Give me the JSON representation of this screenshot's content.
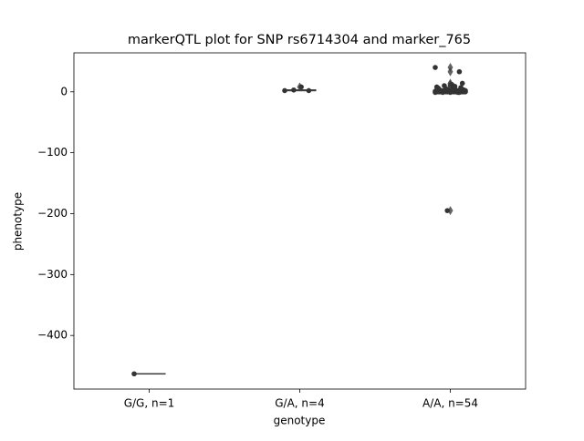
{
  "chart_data": {
    "type": "box",
    "title": "markerQTL plot for SNP rs6714304 and marker_765",
    "x_label": "genotype",
    "y_label": "phenotype",
    "categories": [
      "G/G, n=1",
      "G/A, n=4",
      "A/A, n=54"
    ],
    "box_colors": [
      "#3274a1",
      "#e1812c",
      "#3a923a"
    ],
    "line_color": "#3f3f3f",
    "point_color": "#333333",
    "boxes": [
      {
        "q1": -463,
        "median": -463,
        "q3": -463,
        "whislo": -463,
        "whishi": -463,
        "fliers": []
      },
      {
        "q1": 2,
        "median": 2.5,
        "q3": 3,
        "whislo": 2,
        "whishi": 3,
        "fliers": [
          8
        ]
      },
      {
        "q1": 0,
        "median": 1,
        "q3": 3,
        "whislo": -1,
        "whishi": 7,
        "fliers": [
          40,
          33,
          14,
          12,
          10,
          9,
          8,
          -195
        ]
      }
    ],
    "points": [
      [
        -463
      ],
      [
        2,
        2,
        8,
        3
      ],
      [
        40,
        33,
        12,
        10,
        8,
        7,
        6,
        5,
        5,
        4,
        4,
        3,
        3,
        3,
        2,
        2,
        2,
        2,
        2,
        1,
        1,
        1,
        1,
        1,
        1,
        0,
        0,
        0,
        0,
        0,
        0,
        0,
        0,
        0,
        0,
        0,
        0,
        0,
        0,
        -1,
        -1,
        -1,
        -1,
        -1,
        1,
        2,
        3,
        0,
        1,
        4,
        6,
        14,
        9,
        -195
      ]
    ],
    "ylim": [
      -488,
      64
    ],
    "yticks": [
      0,
      {
        "value": -100,
        "label": "−100"
      },
      {
        "value": -200,
        "label": "−200"
      },
      {
        "value": -300,
        "label": "−300"
      },
      {
        "value": -400,
        "label": "−400"
      }
    ]
  }
}
